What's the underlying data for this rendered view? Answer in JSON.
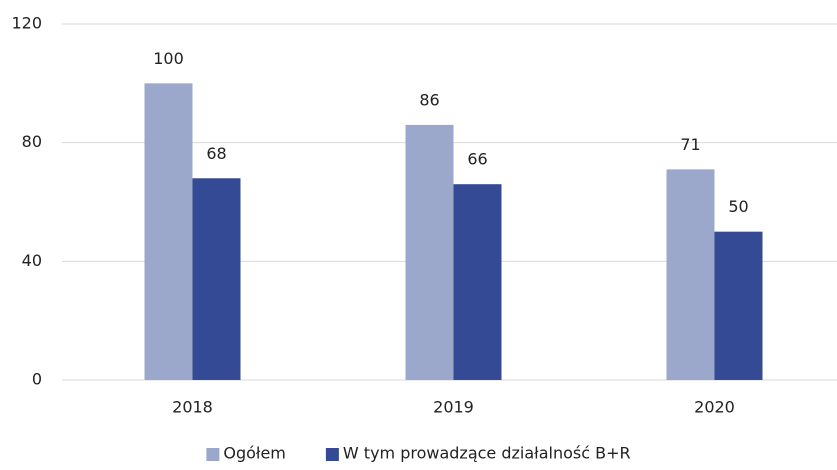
{
  "chart_data": {
    "type": "bar",
    "categories": [
      "2018",
      "2019",
      "2020"
    ],
    "series": [
      {
        "name": "Ogółem",
        "color": "#9ba8cc",
        "values": [
          100,
          86,
          71
        ]
      },
      {
        "name": "W tym prowadzące działalność B+R",
        "color": "#344a94",
        "values": [
          68,
          66,
          50
        ]
      }
    ],
    "ylim": [
      0,
      120
    ],
    "yticks": [
      0,
      40,
      80,
      120
    ],
    "grid": true,
    "legend": "bottom"
  }
}
